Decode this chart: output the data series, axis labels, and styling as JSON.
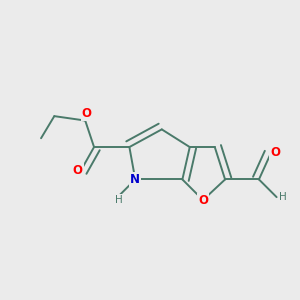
{
  "bg_color": "#EBEBEB",
  "bond_color": "#4a7a6a",
  "bond_width": 1.4,
  "atom_colors": {
    "O": "#ff0000",
    "N": "#0000cc",
    "H_gray": "#4a7a6a"
  },
  "font_size_atom": 8.5,
  "fig_size": [
    3.0,
    3.0
  ],
  "dpi": 100
}
